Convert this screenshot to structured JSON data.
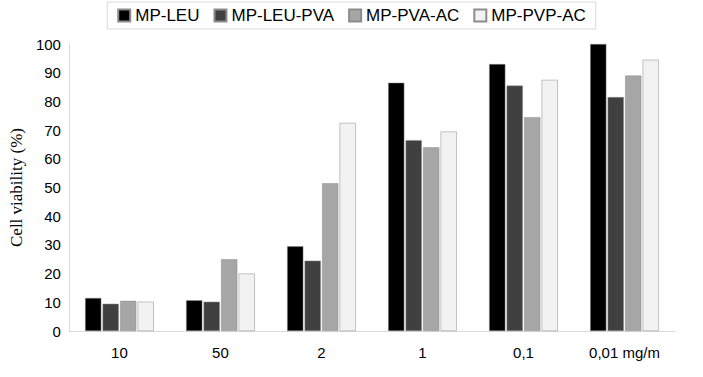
{
  "chart_data": {
    "type": "bar",
    "y_label": "Cell viability (%)",
    "categories": [
      "10",
      "50",
      "2",
      "1",
      "0,1",
      "0,01 mg/m"
    ],
    "series": [
      {
        "name": "MP-LEU",
        "color": "#000000",
        "values": [
          11.5,
          10.7,
          29.5,
          86.5,
          93,
          100
        ]
      },
      {
        "name": "MP-LEU-PVA",
        "color": "#404040",
        "values": [
          9.5,
          10.2,
          24.5,
          66.5,
          85.5,
          81.5
        ]
      },
      {
        "name": "MP-PVA-AC",
        "color": "#a6a6a6",
        "values": [
          10.5,
          25,
          51.5,
          64,
          74.5,
          89
        ]
      },
      {
        "name": "MP-PVP-AC",
        "color": "#f2f2f2",
        "values": [
          10.2,
          20,
          72.5,
          69.5,
          87.5,
          94.5
        ]
      }
    ],
    "ylim": [
      0,
      100
    ],
    "yticks": [
      0,
      10,
      20,
      30,
      40,
      50,
      60,
      70,
      80,
      90,
      100
    ],
    "grid": false,
    "legend": "top"
  }
}
